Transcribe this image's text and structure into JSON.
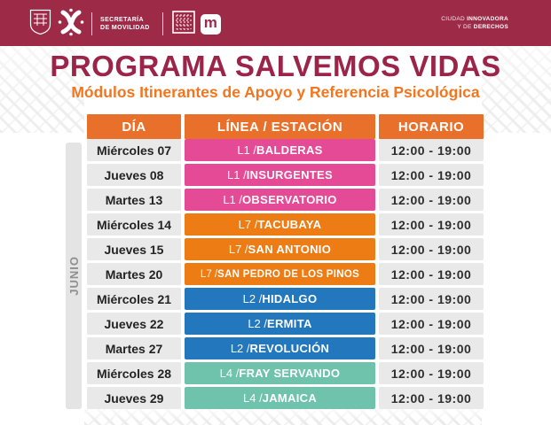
{
  "topbar": {
    "bg_color": "#9d2a47",
    "agency": {
      "line1": "SECRETARÍA",
      "line2": "DE MOVILIDAD"
    },
    "tagline": {
      "line1_regular": "CIUDAD ",
      "line1_bold": "INNOVADORA",
      "line2_regular": "Y DE ",
      "line2_bold": "DERECHOS"
    },
    "metro_letter": "m"
  },
  "header": {
    "title": "PROGRAMA SALVEMOS VIDAS",
    "title_color": "#9c2448",
    "subtitle": "Módulos Itinerantes de Apoyo y Referencia Psicológica",
    "subtitle_color": "#f1761f"
  },
  "month_label": "JUNIO",
  "table": {
    "header_bg": "#e8702a",
    "columns": [
      "DÍA",
      "LÍNEA / ESTACIÓN",
      "HORARIO"
    ],
    "line_colors": {
      "L1": "#e54a96",
      "L7": "#ec7c13",
      "L2": "#2277bd",
      "L4": "#6fc2ab"
    },
    "rows": [
      {
        "day": "Miércoles 07",
        "line": "L1",
        "station": "BALDERAS",
        "schedule": "12:00 - 19:00"
      },
      {
        "day": "Jueves 08",
        "line": "L1",
        "station": "INSURGENTES",
        "schedule": "12:00 - 19:00"
      },
      {
        "day": "Martes 13",
        "line": "L1",
        "station": "OBSERVATORIO",
        "schedule": "12:00 - 19:00"
      },
      {
        "day": "Miércoles 14",
        "line": "L7",
        "station": "TACUBAYA",
        "schedule": "12:00 - 19:00"
      },
      {
        "day": "Jueves 15",
        "line": "L7",
        "station": "SAN ANTONIO",
        "schedule": "12:00 - 19:00"
      },
      {
        "day": "Martes 20",
        "line": "L7",
        "station": "SAN PEDRO DE LOS PINOS",
        "schedule": "12:00 - 19:00"
      },
      {
        "day": "Miércoles 21",
        "line": "L2",
        "station": "HIDALGO",
        "schedule": "12:00 - 19:00"
      },
      {
        "day": "Jueves 22",
        "line": "L2",
        "station": "ERMITA",
        "schedule": "12:00 - 19:00"
      },
      {
        "day": "Martes 27",
        "line": "L2",
        "station": "REVOLUCIÓN",
        "schedule": "12:00 - 19:00"
      },
      {
        "day": "Miércoles 28",
        "line": "L4",
        "station": "FRAY SERVANDO",
        "schedule": "12:00 - 19:00"
      },
      {
        "day": "Jueves 29",
        "line": "L4",
        "station": "JAMAICA",
        "schedule": "12:00 - 19:00"
      }
    ]
  }
}
